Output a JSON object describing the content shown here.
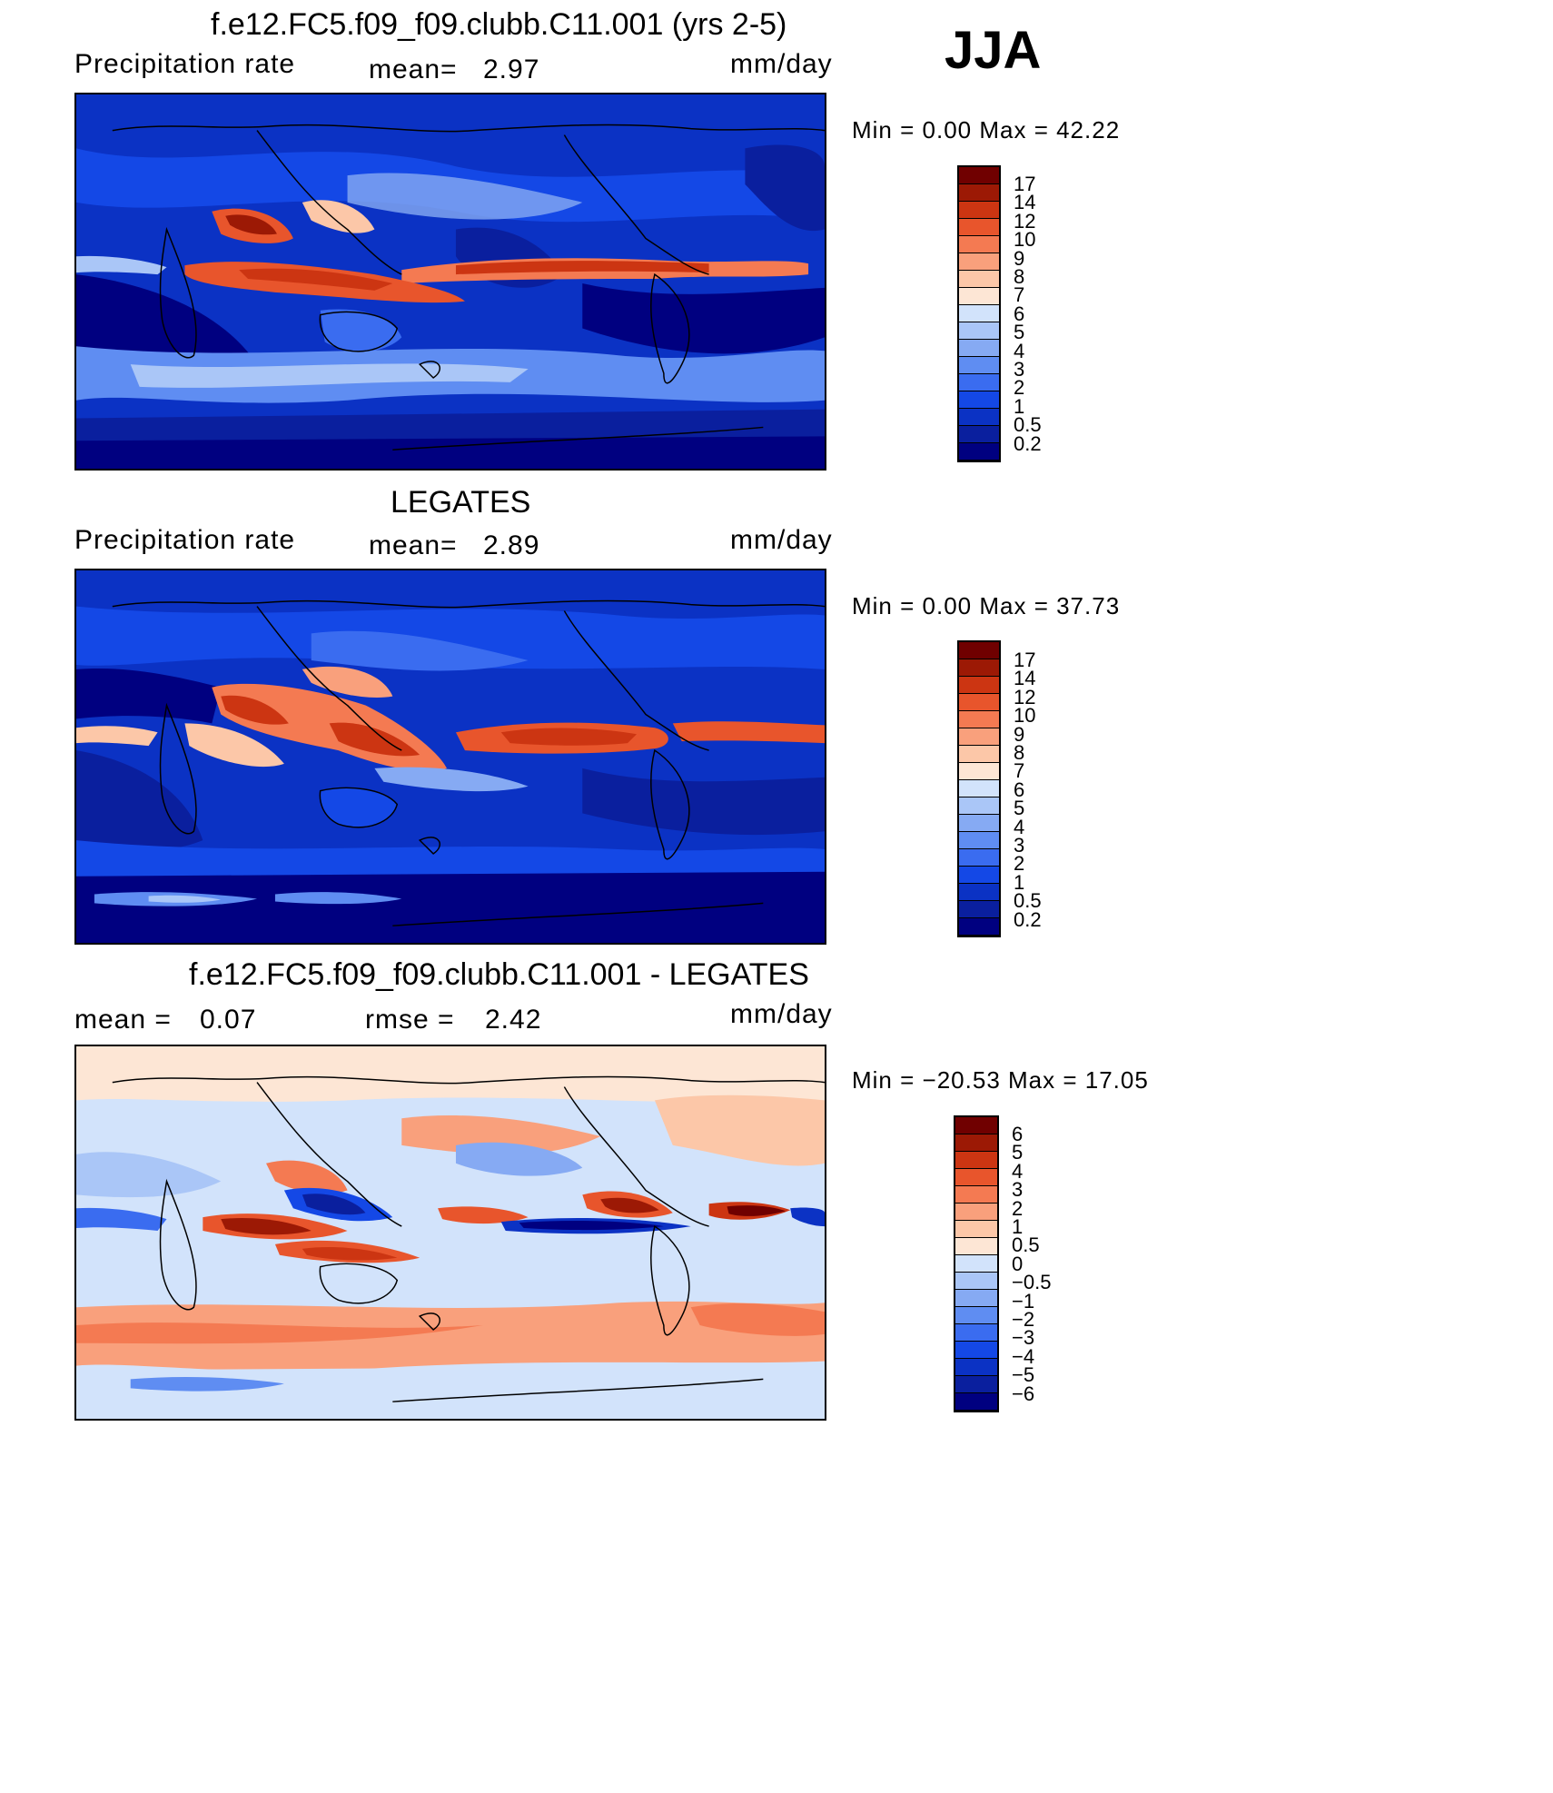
{
  "season": "JJA",
  "panels": [
    {
      "id": "model",
      "title": "f.e12.FC5.f09_f09.clubb.C11.001 (yrs 2-5)",
      "left_label": "Precipitation  rate",
      "mid_label": "mean=",
      "mid_value": "2.97",
      "unit": "mm/day",
      "min_max": "Min  =     0.00  Max  =     42.22",
      "colorbar_labels": [
        "17",
        "14",
        "12",
        "10",
        "9",
        "8",
        "7",
        "6",
        "5",
        "4",
        "3",
        "2",
        "1",
        "0.5",
        "0.2"
      ]
    },
    {
      "id": "obs",
      "title": "LEGATES",
      "left_label": "Precipitation  rate",
      "mid_label": "mean=",
      "mid_value": "2.89",
      "unit": "mm/day",
      "min_max": "Min  =     0.00  Max  =     37.73",
      "colorbar_labels": [
        "17",
        "14",
        "12",
        "10",
        "9",
        "8",
        "7",
        "6",
        "5",
        "4",
        "3",
        "2",
        "1",
        "0.5",
        "0.2"
      ]
    },
    {
      "id": "diff",
      "title": "f.e12.FC5.f09_f09.clubb.C11.001 - LEGATES",
      "left_label": "mean  =",
      "left_value": "0.07",
      "mid_label": "rmse  =",
      "mid_value": "2.42",
      "unit": "mm/day",
      "min_max": "Min  =  −20.53  Max  =     17.05",
      "colorbar_labels": [
        "6",
        "5",
        "4",
        "3",
        "2",
        "1",
        "0.5",
        "0",
        "−0.5",
        "−1",
        "−2",
        "−3",
        "−4",
        "−5",
        "−6"
      ]
    }
  ],
  "colors": {
    "precip_scale": [
      "#000080",
      "#0a1f9e",
      "#0b32c4",
      "#1448e6",
      "#3a6cf0",
      "#5f8df2",
      "#86aaf3",
      "#aac6f7",
      "#d2e3fb",
      "#fde6d5",
      "#fcc7a8",
      "#f9a07c",
      "#f47a52",
      "#e8552c",
      "#cc3512",
      "#9c1905",
      "#700000"
    ],
    "diff_scale": [
      "#000080",
      "#0a1f9e",
      "#0b32c4",
      "#1448e6",
      "#3a6cf0",
      "#5f8df2",
      "#86aaf3",
      "#aac6f7",
      "#d2e3fb",
      "#fde6d5",
      "#fcc7a8",
      "#f9a07c",
      "#f47a52",
      "#e8552c",
      "#cc3512",
      "#9c1905",
      "#700000"
    ]
  }
}
